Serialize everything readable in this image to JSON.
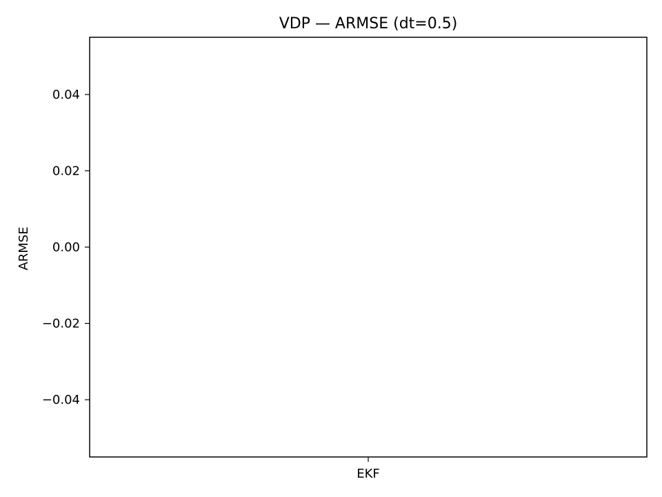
{
  "chart_data": {
    "type": "bar",
    "title": "VDP — ARMSE (dt=0.5)",
    "xlabel": "",
    "ylabel": "ARMSE",
    "categories": [
      "EKF"
    ],
    "values": [
      null
    ],
    "ylim": [
      -0.055,
      0.055
    ],
    "yticks": [
      0.04,
      0.02,
      0.0,
      -0.02,
      -0.04
    ],
    "ytick_labels": [
      "0.04",
      "0.02",
      "0.00",
      "−0.02",
      "−0.04"
    ],
    "grid": false
  }
}
